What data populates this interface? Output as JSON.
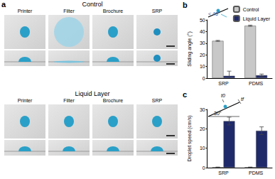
{
  "panel_a": {
    "label": "a",
    "groups": [
      {
        "title": "Control",
        "columns": [
          "Printer",
          "Filter",
          "Brochure",
          "SRP"
        ]
      },
      {
        "title": "Liquid Layer",
        "columns": [
          "Printer",
          "Filter",
          "Brochure",
          "SRP"
        ]
      }
    ]
  },
  "chart_data": [
    {
      "type": "bar",
      "title": "b",
      "annotations": [
        "< 45°"
      ],
      "categories": [
        "SRP",
        "PDMS"
      ],
      "series": [
        {
          "name": "Control",
          "color": "#c8c8c8",
          "values": [
            32,
            45
          ],
          "errors": [
            0.4,
            0.5
          ]
        },
        {
          "name": "Liquid Layer",
          "color": "#1f2a6b",
          "values": [
            2,
            2.5
          ],
          "errors": [
            4,
            1
          ]
        }
      ],
      "y_label": "Sliding angle (°)",
      "ylim": [
        0,
        50
      ],
      "yticks": [
        0,
        10,
        20,
        30,
        40,
        50
      ],
      "grid": false,
      "legend": "upper right"
    },
    {
      "type": "bar",
      "title": "c",
      "annotations": [
        "30°",
        "t0",
        "tf"
      ],
      "categories": [
        "SRP",
        "PDMS"
      ],
      "series": [
        {
          "name": "Control",
          "color": "#c8c8c8",
          "values": [
            0.2,
            0.2
          ],
          "errors": [
            0.1,
            0.1
          ]
        },
        {
          "name": "Liquid Layer",
          "color": "#1f2a6b",
          "values": [
            24,
            19
          ],
          "errors": [
            2,
            2
          ]
        }
      ],
      "y_label": "Droplet speed (cm/s)",
      "ylim": [
        0,
        30
      ],
      "yticks": [
        0,
        10,
        20,
        30
      ],
      "grid": false
    }
  ]
}
